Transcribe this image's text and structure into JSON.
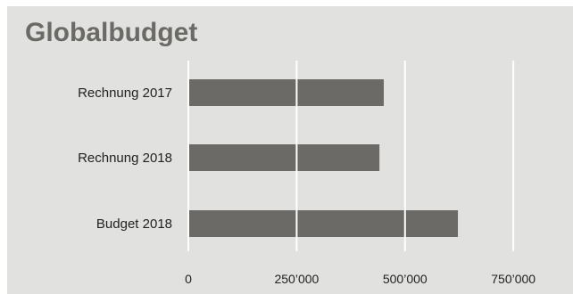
{
  "chart_data": {
    "type": "bar",
    "orientation": "horizontal",
    "title": "Globalbudget",
    "categories": [
      "Rechnung 2017",
      "Rechnung 2018",
      "Budget 2018"
    ],
    "values": [
      451000,
      441000,
      622000
    ],
    "xlim": [
      0,
      900000
    ],
    "xticks": [
      0,
      250000,
      500000,
      750000
    ],
    "xtick_labels": [
      "0",
      "250’000",
      "500’000",
      "750’000"
    ],
    "grid": "vertical",
    "legend": "none",
    "bar_color": "#6b6a66",
    "grid_color": "#ffffff",
    "background_color": "#e1e1df",
    "title_color": "#6b6a66"
  }
}
